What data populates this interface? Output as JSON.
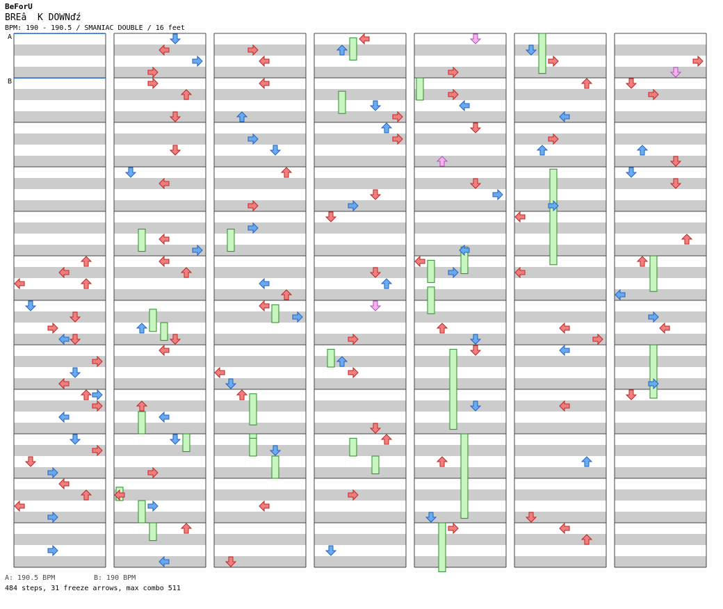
{
  "header": {
    "title": "BeForU",
    "subtitle": "BREâ  K DOWNďź",
    "info": "BPM: 190 - 190.5 / SMANIAC DOUBLE / 16 feet"
  },
  "markers": {
    "a": "A",
    "b": "B"
  },
  "footer": {
    "bpm_a": "A: 190.5 BPM",
    "bpm_b": "B: 190 BPM",
    "stats": "484 steps, 31 freeze arrows, max combo 511"
  },
  "colors": {
    "red": "#f08080",
    "blue": "#6aaaf0",
    "pink": "#f4b0f0",
    "freeze": "#c8f5c0",
    "stripe": "#cccccc"
  },
  "chart_data": {
    "type": "table",
    "columns": 7,
    "measures_per_column": 12,
    "lanes": 8,
    "lane_colors": [
      "red",
      "blue",
      "red",
      "blue",
      "red",
      "blue",
      "red",
      "blue"
    ],
    "notes": [
      [
        0,
        5,
        6,
        "red"
      ],
      [
        0,
        5,
        4,
        "red"
      ],
      [
        0,
        5,
        0,
        "red"
      ],
      [
        0,
        5,
        6,
        "red"
      ],
      [
        0,
        6,
        1,
        "blue"
      ],
      [
        0,
        6,
        5,
        "red"
      ],
      [
        0,
        6,
        3,
        "red"
      ],
      [
        0,
        6,
        4,
        "blue"
      ],
      [
        0,
        6,
        5,
        "red"
      ],
      [
        0,
        7,
        7,
        "red"
      ],
      [
        0,
        7,
        5,
        "blue"
      ],
      [
        0,
        7,
        4,
        "blue"
      ],
      [
        0,
        7,
        4,
        "red"
      ],
      [
        0,
        8,
        7,
        "red"
      ],
      [
        0,
        8,
        4,
        "blue"
      ],
      [
        0,
        8,
        4,
        "blue"
      ],
      [
        0,
        8,
        6,
        "red"
      ],
      [
        0,
        8,
        7,
        "blue"
      ],
      [
        0,
        9,
        1,
        "red"
      ],
      [
        0,
        9,
        3,
        "blue"
      ],
      [
        0,
        9,
        5,
        "blue"
      ],
      [
        0,
        9,
        7,
        "red"
      ],
      [
        0,
        10,
        0,
        "red"
      ],
      [
        0,
        10,
        3,
        "blue"
      ],
      [
        0,
        10,
        4,
        "red"
      ],
      [
        0,
        10,
        6,
        "red"
      ],
      [
        0,
        11,
        3,
        "blue"
      ],
      [
        1,
        0,
        3,
        "red"
      ],
      [
        1,
        0,
        5,
        "blue"
      ],
      [
        1,
        0,
        4,
        "red"
      ],
      [
        1,
        0,
        7,
        "blue"
      ],
      [
        1,
        1,
        5,
        "red"
      ],
      [
        1,
        1,
        3,
        "red"
      ],
      [
        1,
        1,
        6,
        "red"
      ],
      [
        1,
        2,
        5,
        "blue"
      ],
      [
        1,
        2,
        5,
        "red"
      ],
      [
        1,
        3,
        1,
        "blue"
      ],
      [
        1,
        3,
        4,
        "red"
      ],
      [
        1,
        4,
        4,
        "red"
      ],
      [
        1,
        4,
        7,
        "blue"
      ],
      [
        1,
        5,
        4,
        "red"
      ],
      [
        1,
        5,
        6,
        "red"
      ],
      [
        1,
        6,
        2,
        "blue"
      ],
      [
        1,
        6,
        5,
        "red"
      ],
      [
        1,
        7,
        4,
        "red"
      ],
      [
        1,
        8,
        2,
        "red"
      ],
      [
        1,
        8,
        4,
        "blue"
      ],
      [
        1,
        9,
        3,
        "red"
      ],
      [
        1,
        9,
        5,
        "blue"
      ],
      [
        1,
        10,
        0,
        "red"
      ],
      [
        1,
        10,
        3,
        "blue"
      ],
      [
        1,
        11,
        4,
        "blue"
      ],
      [
        1,
        11,
        6,
        "red"
      ],
      [
        2,
        0,
        3,
        "red"
      ],
      [
        2,
        0,
        4,
        "red"
      ],
      [
        2,
        1,
        2,
        "blue"
      ],
      [
        2,
        1,
        4,
        "red"
      ],
      [
        2,
        2,
        3,
        "blue"
      ],
      [
        2,
        2,
        5,
        "blue"
      ],
      [
        2,
        3,
        3,
        "red"
      ],
      [
        2,
        3,
        6,
        "red"
      ],
      [
        2,
        4,
        3,
        "blue"
      ],
      [
        2,
        5,
        4,
        "blue"
      ],
      [
        2,
        5,
        6,
        "red"
      ],
      [
        2,
        6,
        4,
        "red"
      ],
      [
        2,
        6,
        7,
        "blue"
      ],
      [
        2,
        7,
        0,
        "red"
      ],
      [
        2,
        7,
        1,
        "blue"
      ],
      [
        2,
        8,
        2,
        "red"
      ],
      [
        2,
        9,
        5,
        "blue"
      ],
      [
        2,
        10,
        4,
        "red"
      ],
      [
        2,
        11,
        1,
        "red"
      ],
      [
        3,
        0,
        4,
        "red"
      ],
      [
        3,
        0,
        2,
        "blue"
      ],
      [
        3,
        1,
        5,
        "blue"
      ],
      [
        3,
        1,
        7,
        "red"
      ],
      [
        3,
        2,
        6,
        "blue"
      ],
      [
        3,
        2,
        7,
        "red"
      ],
      [
        3,
        3,
        5,
        "red"
      ],
      [
        3,
        3,
        3,
        "blue"
      ],
      [
        3,
        4,
        1,
        "red"
      ],
      [
        3,
        5,
        5,
        "red"
      ],
      [
        3,
        5,
        6,
        "blue"
      ],
      [
        3,
        6,
        3,
        "red"
      ],
      [
        3,
        6,
        5,
        "pink"
      ],
      [
        3,
        7,
        2,
        "blue"
      ],
      [
        3,
        7,
        3,
        "red"
      ],
      [
        3,
        8,
        5,
        "red"
      ],
      [
        3,
        9,
        6,
        "red"
      ],
      [
        3,
        10,
        3,
        "red"
      ],
      [
        3,
        11,
        1,
        "blue"
      ],
      [
        4,
        0,
        3,
        "red"
      ],
      [
        4,
        0,
        5,
        "pink"
      ],
      [
        4,
        1,
        3,
        "red"
      ],
      [
        4,
        1,
        4,
        "blue"
      ],
      [
        4,
        2,
        2,
        "pink"
      ],
      [
        4,
        2,
        5,
        "red"
      ],
      [
        4,
        3,
        5,
        "red"
      ],
      [
        4,
        3,
        7,
        "blue"
      ],
      [
        4,
        4,
        4,
        "blue"
      ],
      [
        4,
        5,
        0,
        "red"
      ],
      [
        4,
        5,
        3,
        "blue"
      ],
      [
        4,
        6,
        2,
        "red"
      ],
      [
        4,
        6,
        5,
        "blue"
      ],
      [
        4,
        7,
        5,
        "red"
      ],
      [
        4,
        8,
        5,
        "blue"
      ],
      [
        4,
        9,
        2,
        "red"
      ],
      [
        4,
        10,
        1,
        "blue"
      ],
      [
        4,
        11,
        3,
        "red"
      ],
      [
        5,
        0,
        1,
        "blue"
      ],
      [
        5,
        0,
        3,
        "red"
      ],
      [
        5,
        1,
        4,
        "blue"
      ],
      [
        5,
        1,
        6,
        "red"
      ],
      [
        5,
        2,
        3,
        "red"
      ],
      [
        5,
        2,
        2,
        "blue"
      ],
      [
        5,
        3,
        3,
        "blue"
      ],
      [
        5,
        4,
        0,
        "red"
      ],
      [
        5,
        5,
        0,
        "red"
      ],
      [
        5,
        6,
        4,
        "red"
      ],
      [
        5,
        6,
        7,
        "red"
      ],
      [
        5,
        7,
        4,
        "blue"
      ],
      [
        5,
        8,
        4,
        "red"
      ],
      [
        5,
        9,
        6,
        "blue"
      ],
      [
        5,
        10,
        1,
        "red"
      ],
      [
        5,
        11,
        4,
        "red"
      ],
      [
        5,
        11,
        6,
        "red"
      ],
      [
        6,
        0,
        7,
        "red"
      ],
      [
        6,
        0,
        5,
        "pink"
      ],
      [
        6,
        1,
        1,
        "red"
      ],
      [
        6,
        1,
        3,
        "red"
      ],
      [
        6,
        2,
        2,
        "blue"
      ],
      [
        6,
        2,
        5,
        "red"
      ],
      [
        6,
        3,
        1,
        "blue"
      ],
      [
        6,
        3,
        5,
        "red"
      ],
      [
        6,
        4,
        6,
        "red"
      ],
      [
        6,
        5,
        0,
        "blue"
      ],
      [
        6,
        5,
        2,
        "red"
      ],
      [
        6,
        6,
        3,
        "blue"
      ],
      [
        6,
        6,
        4,
        "red"
      ],
      [
        6,
        7,
        3,
        "blue"
      ],
      [
        6,
        8,
        1,
        "red"
      ]
    ],
    "freezes": [
      [
        3,
        0,
        3,
        0.1,
        0.6
      ],
      [
        3,
        1,
        2,
        0.3,
        0.8
      ],
      [
        4,
        1,
        0,
        0.0,
        0.5
      ],
      [
        4,
        4,
        4,
        0.8,
        1.4
      ],
      [
        4,
        5,
        1,
        0.7,
        1.3
      ],
      [
        5,
        0,
        2,
        0.0,
        0.9
      ],
      [
        5,
        3,
        3,
        0.05,
        2.2
      ],
      [
        1,
        4,
        2,
        0.4,
        0.9
      ],
      [
        1,
        6,
        3,
        0.2,
        0.7
      ],
      [
        1,
        6,
        4,
        0.5,
        0.9
      ],
      [
        1,
        8,
        2,
        0.5,
        1.0
      ],
      [
        1,
        9,
        6,
        0.0,
        0.4
      ],
      [
        1,
        10,
        0,
        0.2,
        0.5
      ],
      [
        1,
        10,
        2,
        0.5,
        1.0
      ],
      [
        1,
        11,
        3,
        0.0,
        0.4
      ],
      [
        2,
        4,
        1,
        0.4,
        0.9
      ],
      [
        2,
        6,
        5,
        0.1,
        0.5
      ],
      [
        2,
        8,
        3,
        0.1,
        0.8
      ],
      [
        2,
        9,
        3,
        0.0,
        0.5
      ],
      [
        2,
        9,
        5,
        0.5,
        1.0
      ],
      [
        3,
        7,
        1,
        0.1,
        0.5
      ],
      [
        3,
        9,
        3,
        0.1,
        0.5
      ],
      [
        3,
        9,
        5,
        0.5,
        0.9
      ],
      [
        4,
        5,
        1,
        0.1,
        0.6
      ],
      [
        4,
        7,
        3,
        0.1,
        1.9
      ],
      [
        4,
        9,
        4,
        0.0,
        1.9
      ],
      [
        4,
        11,
        2,
        0.0,
        1.1
      ],
      [
        5,
        0,
        2,
        0.0,
        0.9
      ],
      [
        6,
        5,
        3,
        0.0,
        0.8
      ],
      [
        6,
        7,
        3,
        0.0,
        1.2
      ],
      [
        2,
        9,
        3,
        0.1,
        0.5
      ]
    ]
  }
}
